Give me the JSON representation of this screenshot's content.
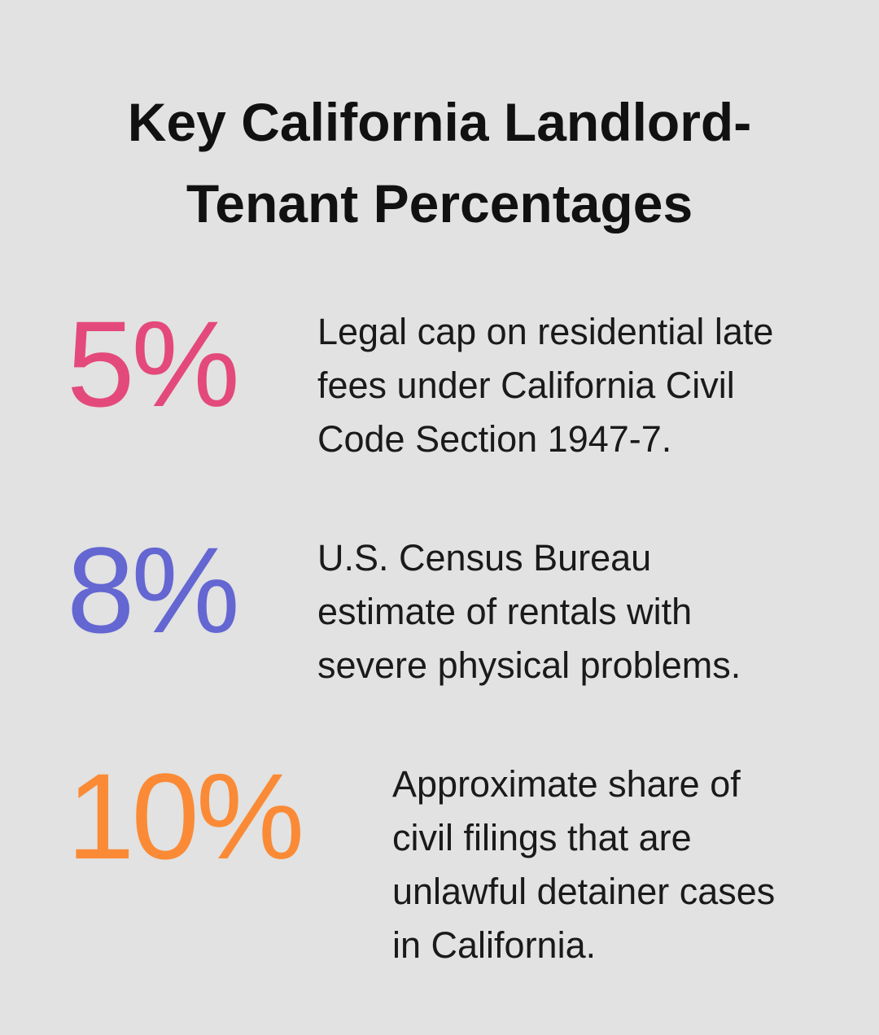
{
  "title": "Key California Landlord-Tenant Percentages",
  "items": [
    {
      "stat": "5%",
      "color": "#e4497b",
      "description": [
        "Legal cap on residential late",
        "fees under California Civil",
        "Code Section 1947-7."
      ]
    },
    {
      "stat": "8%",
      "color": "#6466d2",
      "description": [
        "U.S. Census Bureau",
        "estimate of rentals with",
        "severe physical problems."
      ]
    },
    {
      "stat": "10%",
      "color": "#fb8a36",
      "description": [
        "Approximate share of",
        "civil filings that are",
        "unlawful detainer cases",
        "in California."
      ]
    }
  ]
}
